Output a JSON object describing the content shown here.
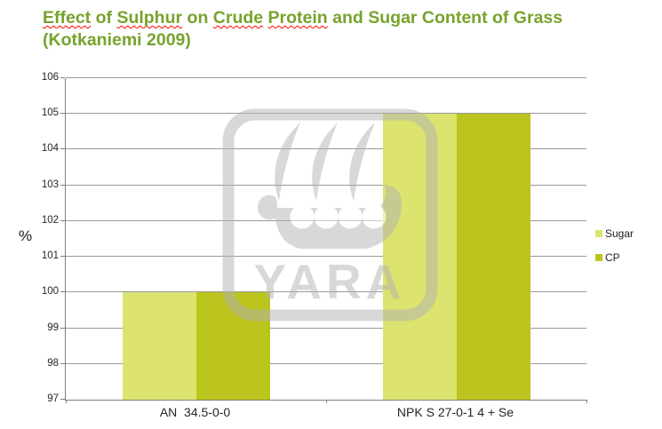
{
  "title": {
    "line1_segments": [
      {
        "text": "Effect",
        "misspelled": true
      },
      {
        "text": " of ",
        "misspelled": false
      },
      {
        "text": "Sulphur",
        "misspelled": true
      },
      {
        "text": " on ",
        "misspelled": false
      },
      {
        "text": "Crude",
        "misspelled": true
      },
      {
        "text": " ",
        "misspelled": false
      },
      {
        "text": "Protein",
        "misspelled": true
      },
      {
        "text": " and Sugar Content of Grass",
        "misspelled": false
      }
    ],
    "line2": "(Kotkaniemi 2009)"
  },
  "chart_data": {
    "type": "bar",
    "title": "Effect of Sulphur on Crude Protein and Sugar Content of Grass (Kotkaniemi 2009)",
    "categories": [
      "AN  34.5-0-0",
      "NPK S 27-0-1 4 + Se"
    ],
    "series": [
      {
        "name": "Sugar",
        "color": "#dce36e",
        "values": [
          100,
          105
        ]
      },
      {
        "name": "CP",
        "color": "#bcc41e",
        "values": [
          100,
          105
        ]
      }
    ],
    "xlabel": "",
    "ylabel": "%",
    "ylim": [
      97,
      106
    ],
    "ytick_step": 1,
    "grid": true,
    "legend_position": "right"
  },
  "watermark": {
    "text": "YARA"
  },
  "style": {
    "title_color": "#77a32c",
    "misspelling_underline_color": "#ff0000",
    "grid_color": "#999999",
    "axis_color": "#808080",
    "text_color": "#1a1a1a",
    "watermark_color": "#b3b3b3"
  }
}
